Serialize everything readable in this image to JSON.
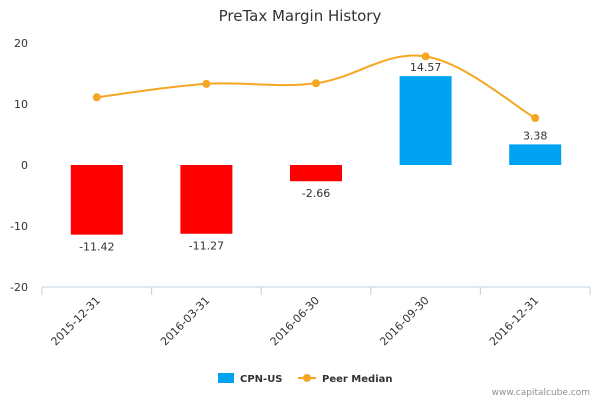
{
  "chart_data": {
    "type": "bar",
    "title": "PreTax Margin History",
    "categories": [
      "2015-12-31",
      "2016-03-31",
      "2016-06-30",
      "2016-09-30",
      "2016-12-31"
    ],
    "series": [
      {
        "name": "CPN-US",
        "type": "bar",
        "values": [
          -11.42,
          -11.27,
          -2.66,
          14.57,
          3.38
        ],
        "data_labels": [
          "-11.42",
          "-11.27",
          "-2.66",
          "14.57",
          "3.38"
        ],
        "positive_color": "#00a2f2",
        "negative_color": "#ff0000"
      },
      {
        "name": "Peer Median",
        "type": "line",
        "values": [
          11.1,
          13.3,
          13.4,
          17.8,
          7.7
        ],
        "color": "#f5a623"
      }
    ],
    "ylim": [
      -20,
      20
    ],
    "yticks": [
      -20,
      -10,
      0,
      10,
      20
    ],
    "ytick_labels": [
      "-20",
      "-10",
      "0",
      "10",
      "20"
    ],
    "legend_position": "bottom-center",
    "grid": false
  },
  "footer": {
    "credit": "www.capitalcube.com"
  }
}
